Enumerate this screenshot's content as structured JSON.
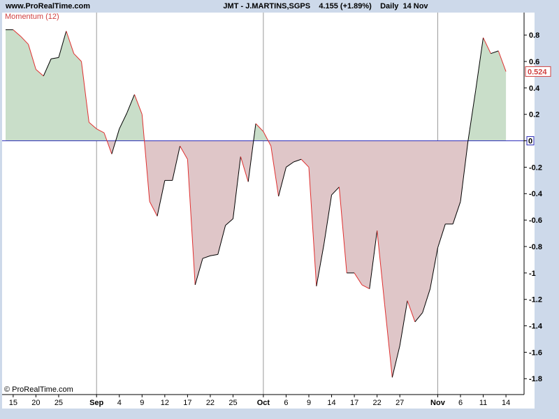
{
  "header": {
    "site": "www.ProRealTime.com",
    "title": "JMT - J.MARTINS,SGPS    4.155 (+1.89%)    Daily  14 Nov"
  },
  "footer": "© ProRealTime.com",
  "chart_data": {
    "type": "momentum",
    "indicator_label": "Momentum (12)",
    "categories": [
      null,
      "15",
      null,
      null,
      "20",
      null,
      null,
      "25",
      null,
      null,
      null,
      null,
      "Sep",
      null,
      null,
      "4",
      null,
      null,
      "9",
      null,
      null,
      "12",
      null,
      null,
      "17",
      null,
      null,
      "22",
      null,
      null,
      "25",
      null,
      null,
      null,
      "Oct",
      null,
      null,
      "6",
      null,
      null,
      "9",
      null,
      null,
      "14",
      null,
      null,
      "17",
      null,
      null,
      "22",
      null,
      null,
      "27",
      null,
      null,
      null,
      null,
      "Nov",
      null,
      null,
      "6",
      null,
      null,
      "11",
      null,
      null,
      "14"
    ],
    "series": [
      {
        "name": "Momentum (12)",
        "values": [
          0.84,
          0.84,
          0.79,
          0.73,
          0.54,
          0.49,
          0.62,
          0.63,
          0.83,
          0.66,
          0.6,
          0.14,
          0.09,
          0.06,
          -0.1,
          0.09,
          0.21,
          0.35,
          0.2,
          -0.46,
          -0.57,
          -0.3,
          -0.3,
          -0.04,
          -0.14,
          -1.09,
          -0.89,
          -0.87,
          -0.86,
          -0.64,
          -0.59,
          -0.12,
          -0.31,
          0.13,
          0.07,
          -0.04,
          -0.42,
          -0.2,
          -0.16,
          -0.14,
          -0.2,
          -1.1,
          -0.78,
          -0.41,
          -0.35,
          -1,
          -1,
          -1.09,
          -1.12,
          -0.68,
          -1.24,
          -1.79,
          -1.55,
          -1.21,
          -1.37,
          -1.3,
          -1.12,
          -0.81,
          -0.63,
          -0.63,
          -0.46,
          0,
          0.38,
          0.78,
          0.66,
          0.68,
          0.524
        ]
      }
    ],
    "ylim": [
      -1.92,
      0.97
    ],
    "yticks": [
      0.8,
      0.6,
      0.4,
      0.2,
      0,
      -0.2,
      -0.4,
      -0.6,
      -0.8,
      -1,
      -1.2,
      -1.4,
      -1.6,
      -1.8
    ],
    "colors": {
      "up": "#000000",
      "down": "#e03030",
      "positive_fill": "#c9dec9",
      "negative_fill": "#dfc6c8",
      "zero_line": "#2a2ab8",
      "label": "#d04040"
    }
  }
}
